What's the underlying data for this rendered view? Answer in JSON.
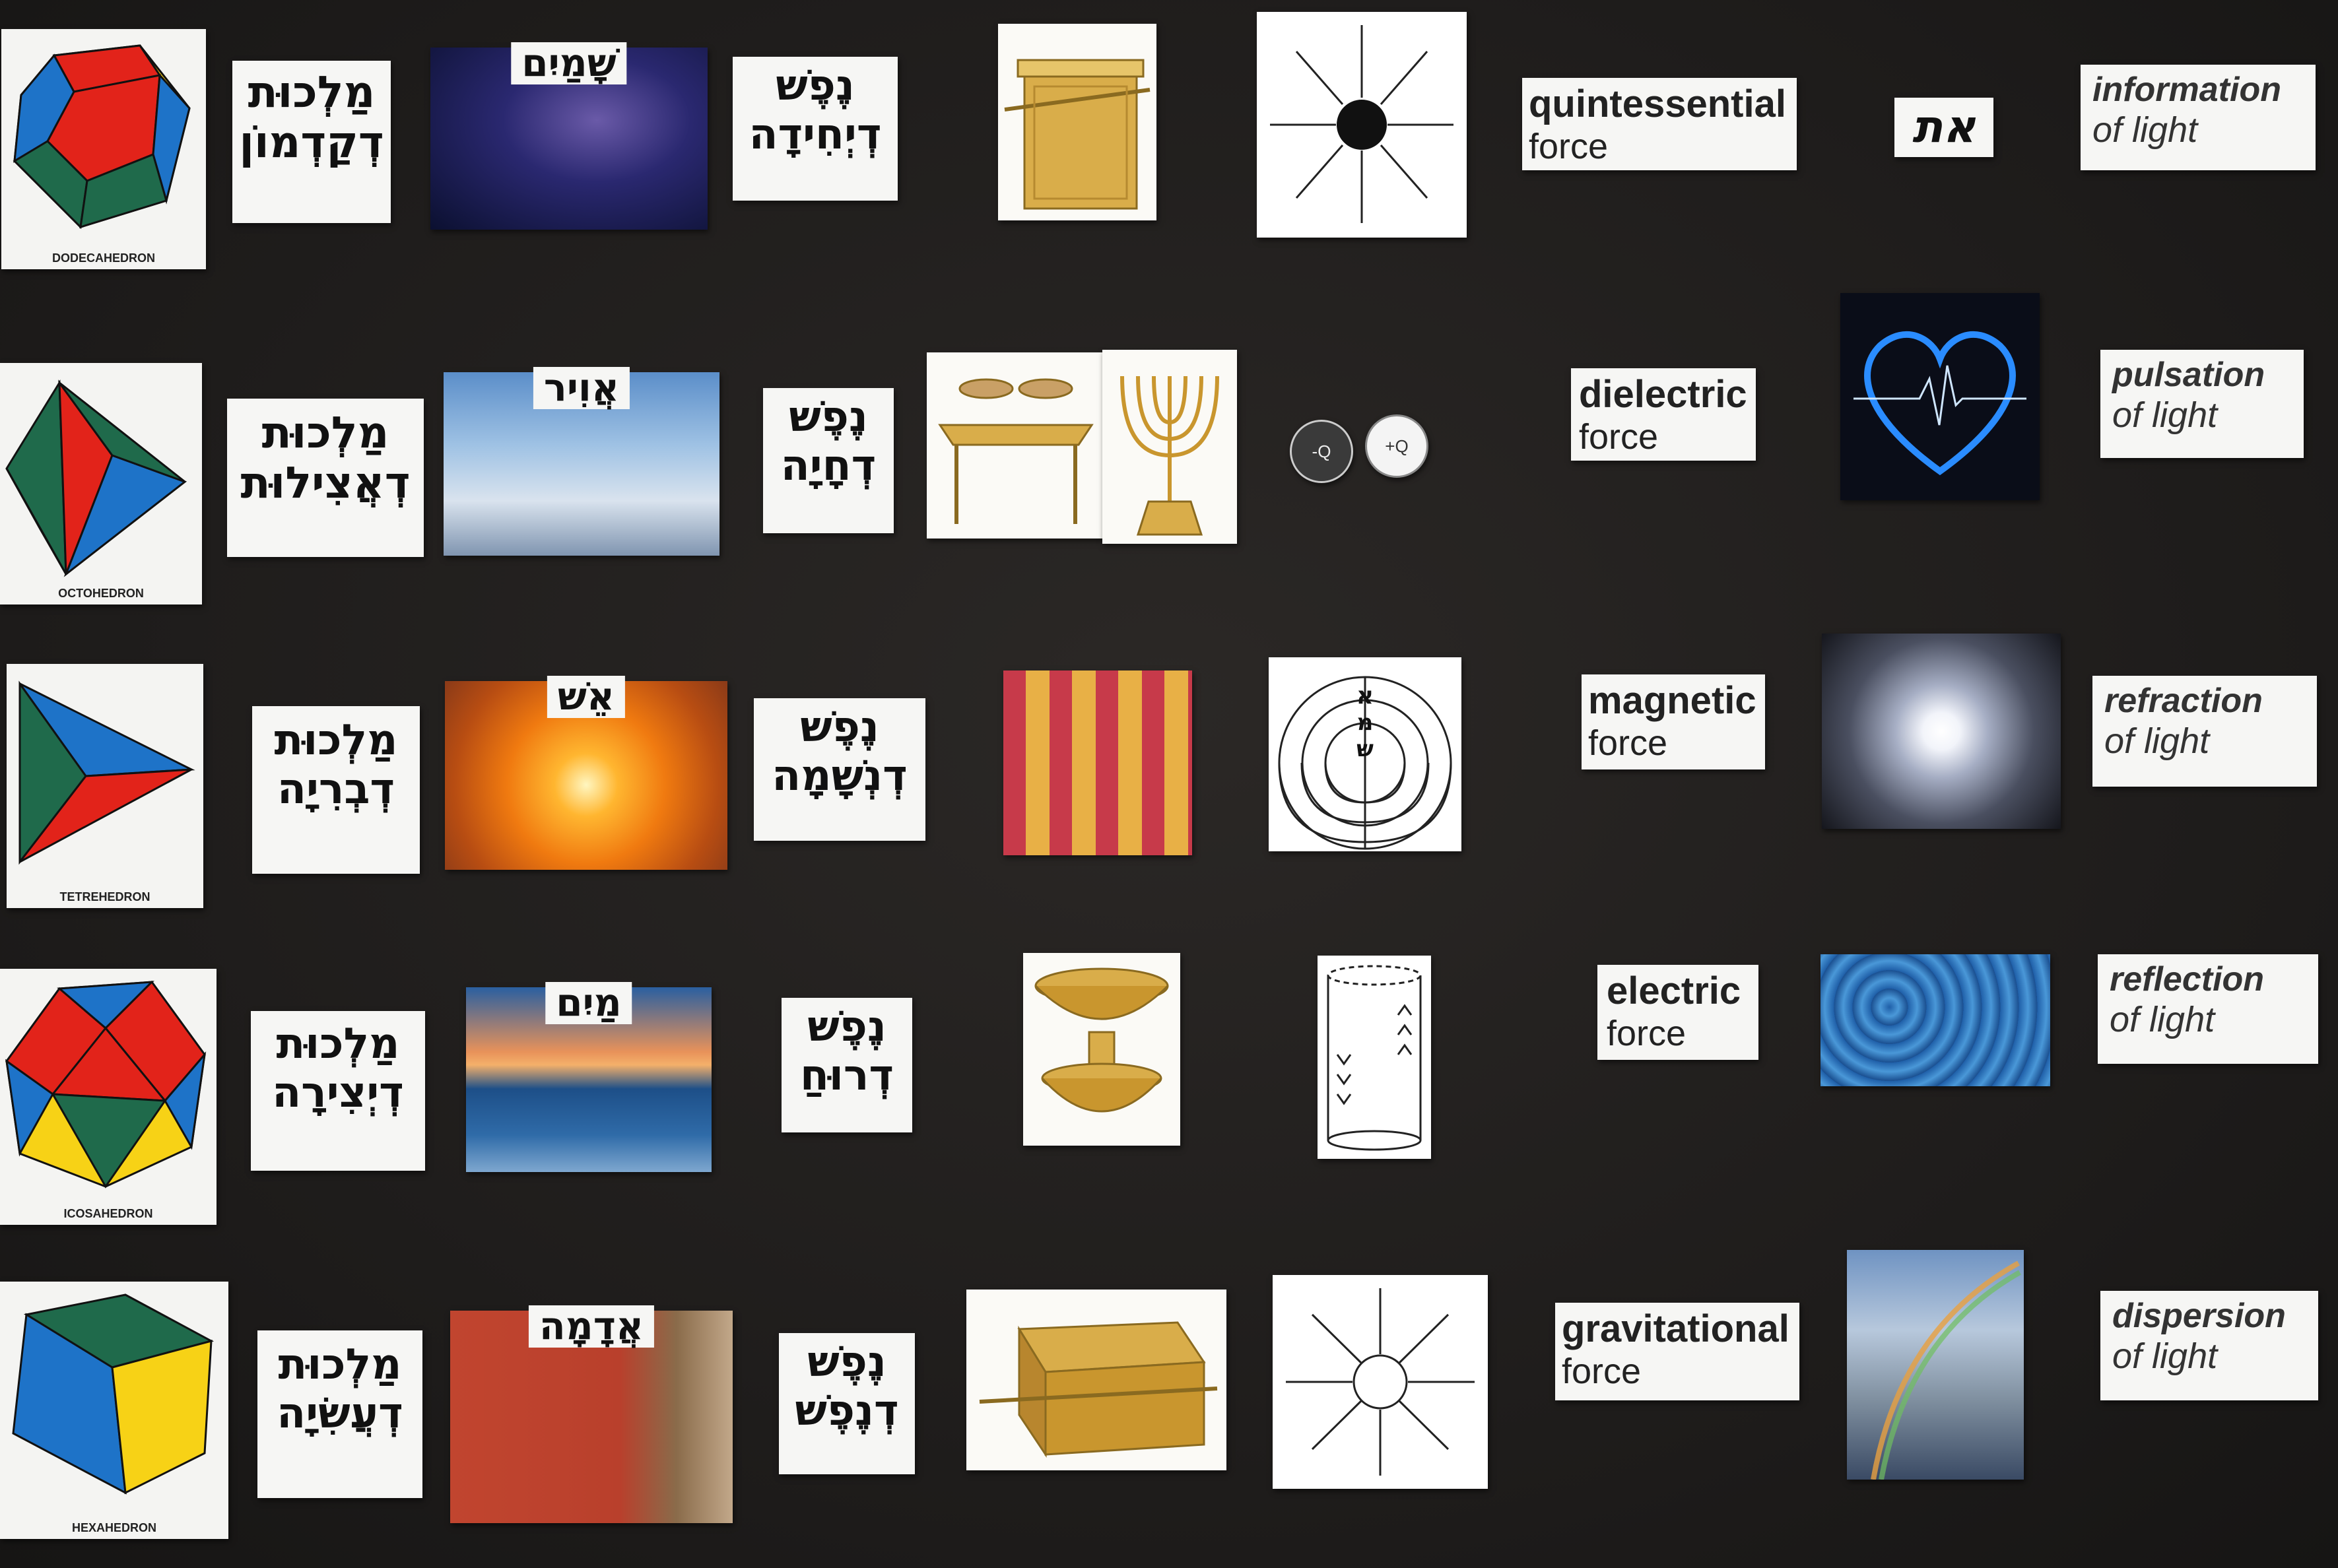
{
  "rows": [
    {
      "solid": "DODECAHEDRON",
      "malkhut": [
        "מַלְכוּת",
        "דְקַדְמוֹן"
      ],
      "element": "שָׁמַיִם",
      "nefesh": [
        "נֶפֶשׁ",
        "דְיְחִידָה"
      ],
      "force_bold": "quintessential",
      "force_plain": "force",
      "extra_hebrew": "את",
      "light_bold": "information",
      "light_plain": "of light"
    },
    {
      "solid": "OCTOHEDRON",
      "malkhut": [
        "מַלְכוּת",
        "דְאֲצִילוּת"
      ],
      "element": "אֲוִיר",
      "nefesh": [
        "נֶפֶשׁ",
        "דְחָיָה"
      ],
      "charges": [
        "-Q",
        "+Q"
      ],
      "force_bold": "dielectric",
      "force_plain": "force",
      "light_bold": "pulsation",
      "light_plain": "of light"
    },
    {
      "solid": "TETREHEDRON",
      "malkhut": [
        "מַלְכוּת",
        "דְבְרִיָה"
      ],
      "element": "אֵשׁ",
      "nefesh": [
        "נֶפֶשׁ",
        "דְנְשָׁמָה"
      ],
      "letters": [
        "א",
        "מ",
        "ש"
      ],
      "force_bold": "magnetic",
      "force_plain": "force",
      "light_bold": "refraction",
      "light_plain": "of light"
    },
    {
      "solid": "ICOSAHEDRON",
      "malkhut": [
        "מַלְכוּת",
        "דְיְצִירָה"
      ],
      "element": "מַיִם",
      "nefesh": [
        "נֶפֶשׁ",
        "דְרוּחַ"
      ],
      "force_bold": "electric",
      "force_plain": "force",
      "light_bold": "reflection",
      "light_plain": "of light"
    },
    {
      "solid": "HEXAHEDRON",
      "malkhut": [
        "מַלְכוּת",
        "דְעֲשִׂיָה"
      ],
      "element": "אֲדָמָה",
      "nefesh": [
        "נֶפֶשׁ",
        "דְנֶפֶשׁ"
      ],
      "force_bold": "gravitational",
      "force_plain": "force",
      "light_bold": "dispersion",
      "light_plain": "of light"
    }
  ],
  "colors": {
    "board": "#1d1b1a",
    "red": "#e2231a",
    "yellow": "#f7d216",
    "blue": "#1e73c8",
    "green": "#1f6a4b",
    "gold": "#d9ad4a"
  }
}
